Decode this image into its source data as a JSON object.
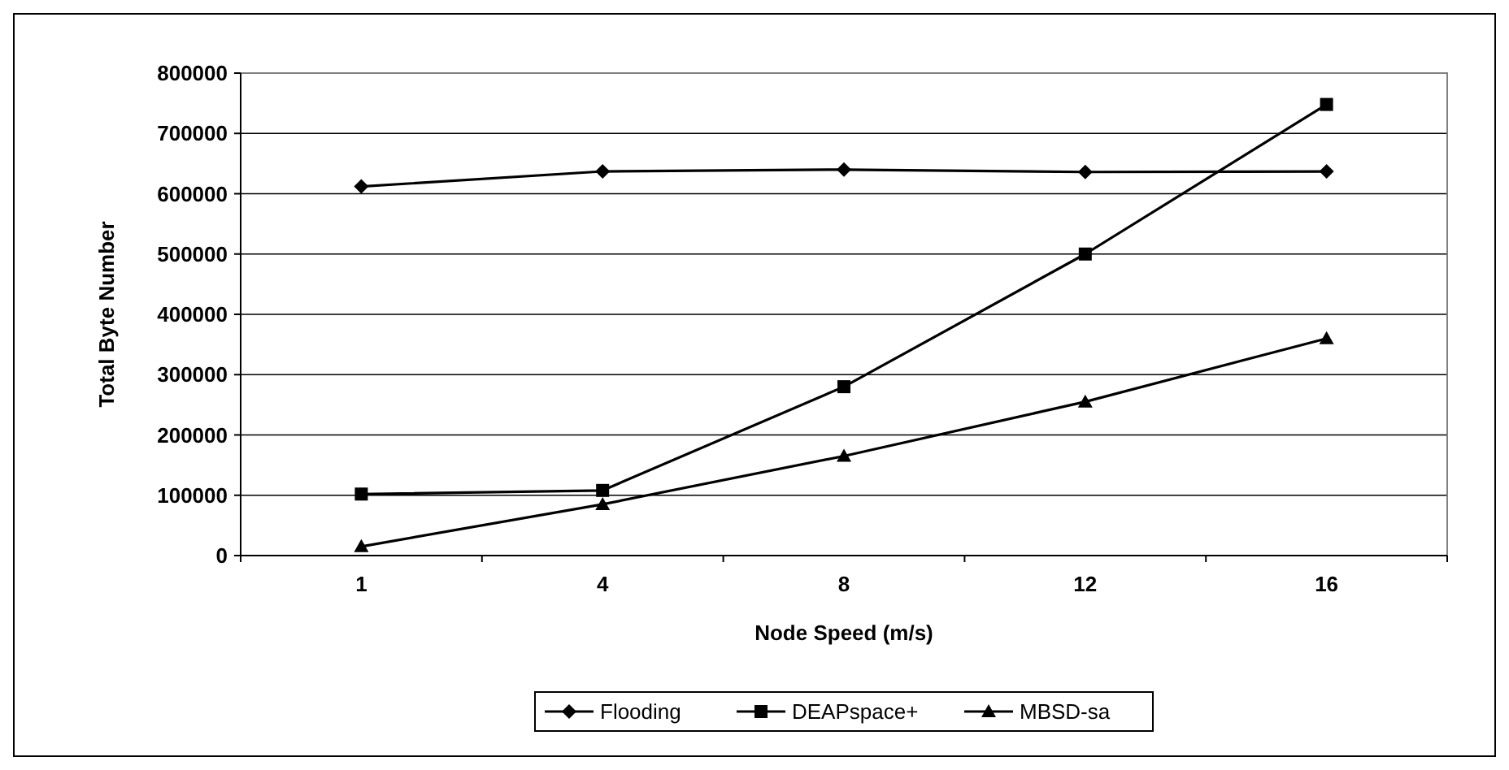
{
  "chart_data": {
    "type": "line",
    "xlabel": "Node Speed (m/s)",
    "ylabel": "Total Byte Number",
    "categories": [
      "1",
      "4",
      "8",
      "12",
      "16"
    ],
    "series": [
      {
        "name": "Flooding",
        "color": "#000000",
        "marker": "diamond",
        "values": [
          612000,
          637000,
          640000,
          636000,
          637000
        ]
      },
      {
        "name": "DEAPspace+",
        "color": "#000000",
        "marker": "square",
        "values": [
          102000,
          108000,
          280000,
          500000,
          748000
        ]
      },
      {
        "name": "MBSD-sa",
        "color": "#000000",
        "marker": "triangle",
        "values": [
          15000,
          85000,
          165000,
          255000,
          360000
        ]
      }
    ],
    "ylim": [
      0,
      800000
    ],
    "yticks": [
      0,
      100000,
      200000,
      300000,
      400000,
      500000,
      600000,
      700000,
      800000
    ],
    "grid": "y",
    "legend": "bottom",
    "line_style": "solid"
  }
}
